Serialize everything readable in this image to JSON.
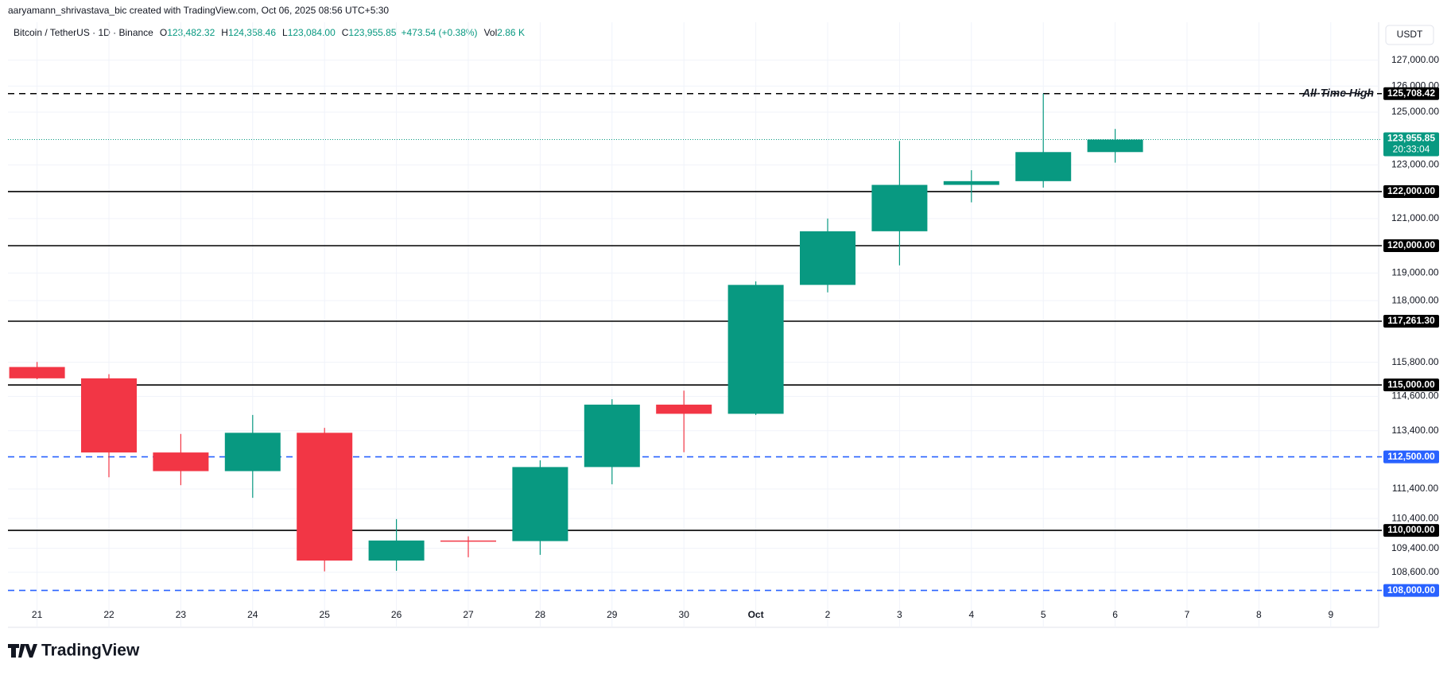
{
  "attribution": "aaryamann_shrivastava_bic created with TradingView.com, Oct 06, 2025 08:56 UTC+5:30",
  "logo": "TradingView",
  "chart_data": {
    "type": "candlestick",
    "symbol": "Bitcoin / TetherUS · 1D · Binance",
    "ohlc": [
      {
        "key": "O",
        "text": "123,482.32"
      },
      {
        "key": "H",
        "text": "124,358.46"
      },
      {
        "key": "L",
        "text": "123,084.00"
      },
      {
        "key": "C",
        "text": "123,955.85"
      }
    ],
    "change": "+473.54 (+0.38%)",
    "volume_key": "Vol",
    "volume": "2.86 K",
    "currency": "USDT",
    "categories": [
      "21",
      "22",
      "23",
      "24",
      "25",
      "26",
      "27",
      "28",
      "29",
      "30",
      "Oct",
      "2",
      "3",
      "4",
      "5",
      "6",
      "7",
      "8",
      "9"
    ],
    "open": [
      115632,
      115232,
      112650,
      112010,
      113330,
      108990,
      109660,
      109640,
      112150,
      114310,
      113990,
      118570,
      120530,
      122250,
      122390,
      123482.32,
      null,
      null,
      null
    ],
    "high": [
      115810,
      115380,
      113290,
      113950,
      113500,
      110380,
      109800,
      112380,
      114500,
      114800,
      118700,
      121000,
      123900,
      122800,
      125708.42,
      124358.46,
      null,
      null,
      null
    ],
    "low": [
      115200,
      111800,
      111530,
      111100,
      108630,
      108650,
      109100,
      109180,
      111560,
      112660,
      113950,
      118300,
      119280,
      121600,
      122150,
      123084.0,
      null,
      null,
      null
    ],
    "close": [
      115232,
      112650,
      112010,
      113330,
      108990,
      109660,
      109640,
      112150,
      114310,
      113990,
      118570,
      120530,
      122250,
      122390,
      123482.32,
      123955.85,
      null,
      null,
      null
    ],
    "up_color": "#089981",
    "down_color": "#f23645",
    "log_scale": true,
    "grid": true,
    "ylim": [
      107570,
      128480
    ],
    "yticks": [
      {
        "value": 127000,
        "label": "127,000.00"
      },
      {
        "value": 126000,
        "label": "126,000.00"
      },
      {
        "value": 125000,
        "label": "125,000.00"
      },
      {
        "value": 123000,
        "label": "123,000.00"
      },
      {
        "value": 121000,
        "label": "121,000.00"
      },
      {
        "value": 119000,
        "label": "119,000.00"
      },
      {
        "value": 118000,
        "label": "118,000.00"
      },
      {
        "value": 115800,
        "label": "115,800.00"
      },
      {
        "value": 114600,
        "label": "114,600.00"
      },
      {
        "value": 113400,
        "label": "113,400.00"
      },
      {
        "value": 111400,
        "label": "111,400.00"
      },
      {
        "value": 110400,
        "label": "110,400.00"
      },
      {
        "value": 109400,
        "label": "109,400.00"
      },
      {
        "value": 108600,
        "label": "108,600.00"
      }
    ],
    "levels": [
      {
        "value": 125708.42,
        "label": "125,708.42",
        "color": "#000000",
        "dash": "dashed",
        "annotation": "All-Time High"
      },
      {
        "value": 122000,
        "label": "122,000.00",
        "color": "#000000",
        "dash": "solid"
      },
      {
        "value": 120000,
        "label": "120,000.00",
        "color": "#000000",
        "dash": "solid"
      },
      {
        "value": 117261.3,
        "label": "117,261.30",
        "color": "#000000",
        "dash": "solid"
      },
      {
        "value": 115000,
        "label": "115,000.00",
        "color": "#000000",
        "dash": "solid"
      },
      {
        "value": 112500,
        "label": "112,500.00",
        "color": "#2962ff",
        "dash": "dashed"
      },
      {
        "value": 110000,
        "label": "110,000.00",
        "color": "#000000",
        "dash": "solid"
      },
      {
        "value": 108000,
        "label": "108,000.00",
        "color": "#2962ff",
        "dash": "dashed"
      }
    ],
    "last_price": {
      "value": 123955.85,
      "label": "123,955.85",
      "countdown": "20:33:04",
      "color": "#089981"
    }
  }
}
